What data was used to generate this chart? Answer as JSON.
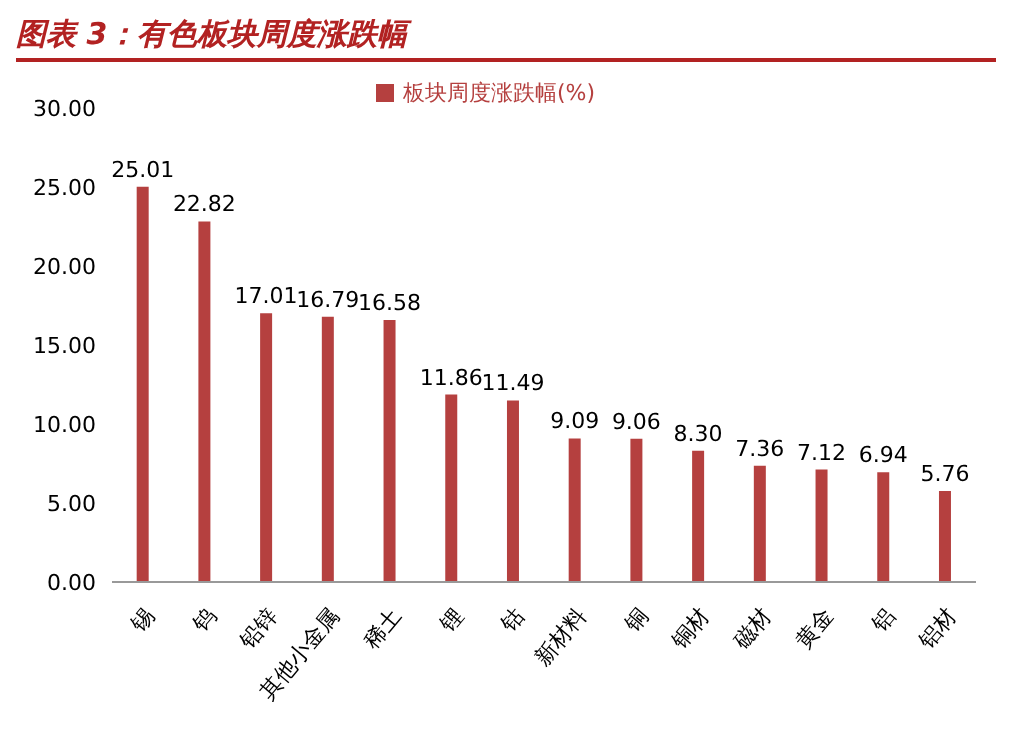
{
  "chart_data": {
    "type": "bar",
    "title": "图表 3：有色板块周度涨跌幅",
    "categories": [
      "锡",
      "钨",
      "铅锌",
      "其他小金属",
      "稀土",
      "锂",
      "钴",
      "新材料",
      "铜",
      "铜材",
      "磁材",
      "黄金",
      "铝",
      "铝材"
    ],
    "series": [
      {
        "name": "板块周度涨跌幅(%)",
        "color": "#b5403f",
        "values": [
          25.01,
          22.82,
          17.01,
          16.79,
          16.58,
          11.86,
          11.49,
          9.09,
          9.06,
          8.3,
          7.36,
          7.12,
          6.94,
          5.76
        ]
      }
    ],
    "ylim": [
      0,
      30
    ],
    "yticks": [
      {
        "value": 0,
        "label": "0.00"
      },
      {
        "value": 5,
        "label": "5.00"
      },
      {
        "value": 10,
        "label": "10.00"
      },
      {
        "value": 15,
        "label": "15.00"
      },
      {
        "value": 20,
        "label": "20.00"
      },
      {
        "value": 25,
        "label": "25.00"
      },
      {
        "value": 30,
        "label": "30.00"
      }
    ],
    "value_labels": [
      "25.01",
      "22.82",
      "17.01",
      "16.79",
      "16.58",
      "11.86",
      "11.49",
      "9.09",
      "9.06",
      "8.30",
      "7.36",
      "7.12",
      "6.94",
      "5.76"
    ],
    "legend": "top",
    "grid": false
  }
}
